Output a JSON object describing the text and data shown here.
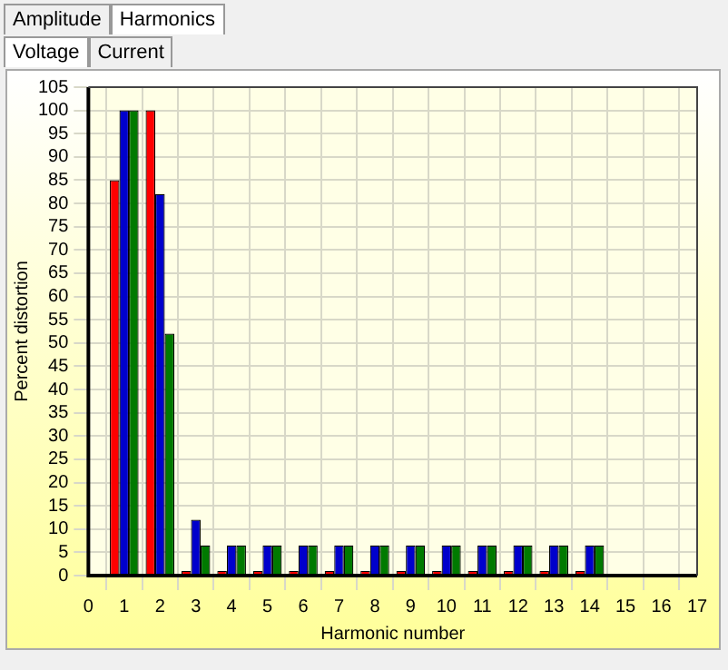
{
  "chart_data": {
    "type": "bar",
    "xlabel": "Harmonic number",
    "ylabel": "Percent distortion",
    "annotations": [
      "Amplitude",
      "Harmonics",
      "Voltage",
      "Current"
    ],
    "x": [
      1,
      2,
      3,
      4,
      5,
      6,
      7,
      8,
      9,
      10,
      11,
      12,
      13,
      14,
      15
    ],
    "series": [
      {
        "color": "#ff0000",
        "values": [
          85,
          100,
          1,
          1,
          1,
          1,
          1,
          1,
          1,
          1,
          1,
          1,
          1,
          1,
          null
        ]
      },
      {
        "color": "#0000cc",
        "values": [
          100,
          82,
          12,
          6.5,
          6.5,
          6.5,
          6.5,
          6.5,
          6.5,
          6.5,
          6.5,
          6.5,
          6.5,
          6.5,
          null
        ]
      },
      {
        "color": "#007a00",
        "values": [
          100,
          52,
          6.5,
          6.5,
          6.5,
          6.5,
          6.5,
          6.5,
          6.5,
          6.5,
          6.5,
          6.5,
          6.5,
          6.5,
          0.3
        ]
      }
    ],
    "xlim": [
      0,
      17
    ],
    "xticks": [
      0,
      1,
      2,
      3,
      4,
      5,
      6,
      7,
      8,
      9,
      10,
      11,
      12,
      13,
      14,
      15,
      16,
      17
    ],
    "ylim": [
      0,
      105
    ],
    "yticks": [
      0,
      5,
      10,
      15,
      20,
      25,
      30,
      35,
      40,
      45,
      50,
      55,
      60,
      65,
      70,
      75,
      80,
      85,
      90,
      95,
      100,
      105
    ],
    "grid": true,
    "legend": false
  }
}
